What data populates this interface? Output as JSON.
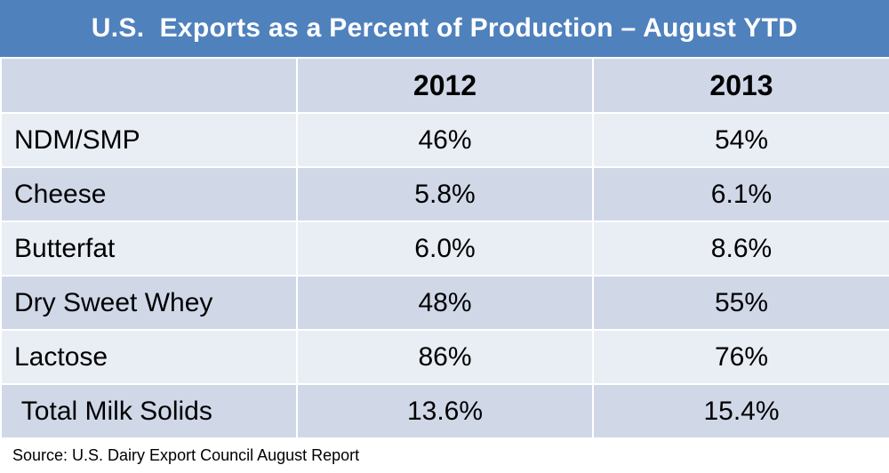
{
  "chart_data": {
    "type": "table",
    "title": "U.S.  Exports as a Percent of Production – August YTD",
    "columns": [
      "",
      "2012",
      "2013"
    ],
    "rows": [
      {
        "label": "NDM/SMP",
        "values": [
          "46%",
          "54%"
        ]
      },
      {
        "label": "Cheese",
        "values": [
          "5.8%",
          "6.1%"
        ]
      },
      {
        "label": "Butterfat",
        "values": [
          "6.0%",
          "8.6%"
        ]
      },
      {
        "label": "Dry Sweet Whey",
        "values": [
          "48%",
          "55%"
        ]
      },
      {
        "label": "Lactose",
        "values": [
          "86%",
          "76%"
        ]
      },
      {
        "label": " Total Milk Solids",
        "values": [
          "13.6%",
          "15.4%"
        ]
      }
    ],
    "source": "Source: U.S. Dairy Export Council August Report"
  },
  "colors": {
    "title_background": "#4f81bd",
    "header_row": "#d0d8e8",
    "band_light": "#e9edf4",
    "band_dark": "#d0d8e8"
  }
}
